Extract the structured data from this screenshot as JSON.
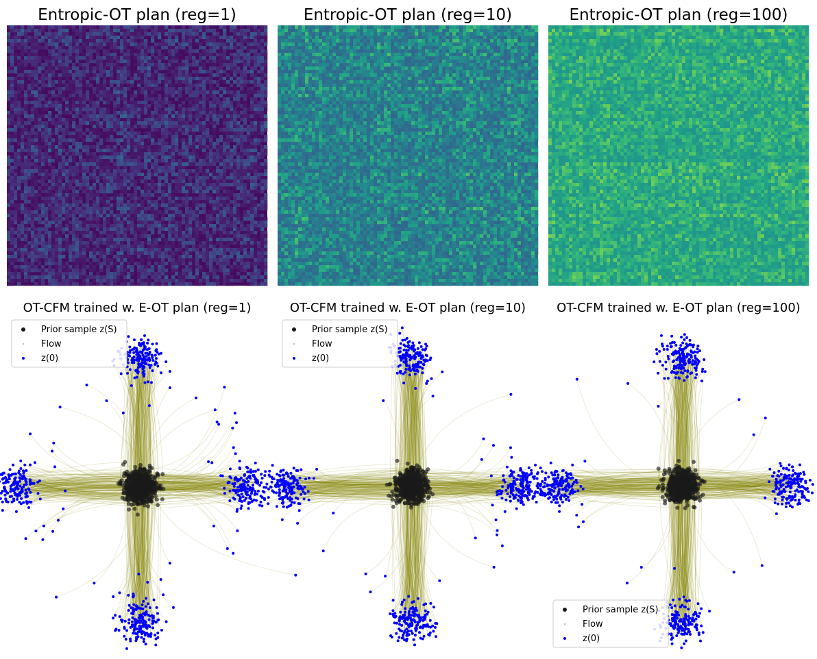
{
  "chart_data": [
    {
      "type": "heatmap",
      "title": "Entropic-OT plan (reg=1)",
      "reg": 1,
      "colormap": "viridis",
      "axes": "off",
      "description_level": {
        "base": 0.03,
        "max": 0.35
      }
    },
    {
      "type": "heatmap",
      "title": "Entropic-OT plan (reg=10)",
      "reg": 10,
      "colormap": "viridis",
      "axes": "off",
      "description_level": {
        "base": 0.33,
        "max": 0.75
      }
    },
    {
      "type": "heatmap",
      "title": "Entropic-OT plan (reg=100)",
      "reg": 100,
      "colormap": "viridis",
      "axes": "off",
      "description_level": {
        "base": 0.52,
        "max": 0.82
      }
    },
    {
      "type": "scatter",
      "title": "OT-CFM trained w. E-OT plan (reg=1)",
      "reg": 1,
      "axes": "off",
      "legend_position": "upper left",
      "legend": [
        "Prior sample z(S)",
        "Flow",
        "z(0)"
      ],
      "series_colors": {
        "prior": "#1a1a1a",
        "flow": "#808000",
        "z0": "#0000ff"
      },
      "clusters": [
        {
          "arm": "top",
          "x": 0,
          "y": 3.6
        },
        {
          "arm": "left",
          "x": -3.5,
          "y": 0
        },
        {
          "arm": "right",
          "x": 3.0,
          "y": 0
        },
        {
          "arm": "bottom",
          "x": 0,
          "y": -3.8
        }
      ]
    },
    {
      "type": "scatter",
      "title": "OT-CFM trained w. E-OT plan (reg=10)",
      "reg": 10,
      "axes": "off",
      "legend_position": "upper left",
      "legend": [
        "Prior sample z(S)",
        "Flow",
        "z(0)"
      ],
      "series_colors": {
        "prior": "#1a1a1a",
        "flow": "#808000",
        "z0": "#0000ff"
      },
      "clusters": [
        {
          "arm": "top",
          "x": 0,
          "y": 3.6
        },
        {
          "arm": "left",
          "x": -3.5,
          "y": 0
        },
        {
          "arm": "right",
          "x": 3.0,
          "y": 0
        },
        {
          "arm": "bottom",
          "x": 0,
          "y": -3.8
        }
      ]
    },
    {
      "type": "scatter",
      "title": "OT-CFM trained w. E-OT plan (reg=100)",
      "reg": 100,
      "axes": "off",
      "legend_position": "lower left",
      "legend": [
        "Prior sample z(S)",
        "Flow",
        "z(0)"
      ],
      "series_colors": {
        "prior": "#1a1a1a",
        "flow": "#808000",
        "z0": "#0000ff"
      },
      "clusters": [
        {
          "arm": "top",
          "x": 0,
          "y": 3.6
        },
        {
          "arm": "left",
          "x": -3.5,
          "y": 0
        },
        {
          "arm": "right",
          "x": 3.0,
          "y": 0
        },
        {
          "arm": "bottom",
          "x": 0,
          "y": -3.8
        }
      ]
    }
  ]
}
